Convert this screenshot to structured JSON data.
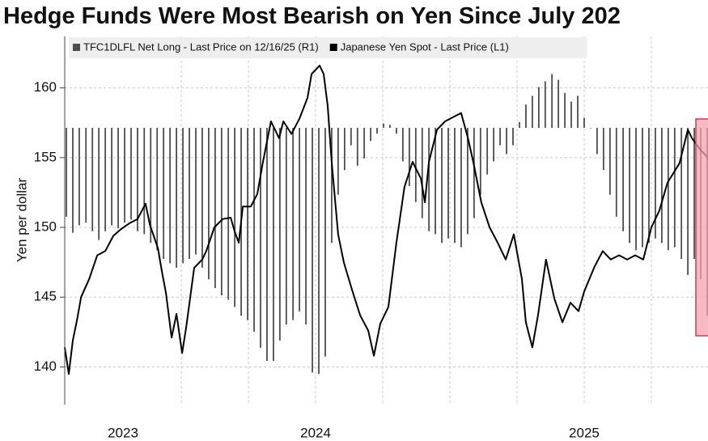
{
  "chart_data": {
    "type": "combo",
    "title": "Hedge Funds Were Most Bearish on Yen Since July 202",
    "y_label": "Yen per dollar",
    "xlim": [
      2023.066,
      2025.461
    ],
    "ylim": [
      137.3,
      163.4
    ],
    "y2lim": [
      -190000,
      60000
    ],
    "yticks": [
      140,
      145,
      150,
      155,
      160
    ],
    "xticks": [
      {
        "value": 2023,
        "label": "2023"
      },
      {
        "value": 2023.5,
        "label": null
      },
      {
        "value": 2023.75,
        "label": null
      },
      {
        "value": 2024,
        "label": "2024"
      },
      {
        "value": 2024.25,
        "label": null
      },
      {
        "value": 2024.5,
        "label": null
      },
      {
        "value": 2024.75,
        "label": null
      },
      {
        "value": 2025,
        "label": "2025"
      },
      {
        "value": 2025.25,
        "label": null
      }
    ],
    "grid": true,
    "legend": "top-left",
    "series": [
      {
        "name": "TFC1DLFL Net Long - Last Price on 12/16/25 (R1)",
        "type": "bar",
        "axis": "y2",
        "color": "#4d4d4d",
        "x": [
          2023.072,
          2023.096,
          2023.12,
          2023.145,
          2023.169,
          2023.193,
          2023.217,
          2023.241,
          2023.265,
          2023.289,
          2023.313,
          2023.337,
          2023.362,
          2023.386,
          2023.41,
          2023.434,
          2023.458,
          2023.482,
          2023.506,
          2023.53,
          2023.554,
          2023.578,
          2023.602,
          2023.626,
          2023.65,
          2023.675,
          2023.699,
          2023.723,
          2023.747,
          2023.771,
          2023.795,
          2023.819,
          2023.843,
          2023.867,
          2023.891,
          2023.916,
          2023.94,
          2023.964,
          2023.988,
          2024.012,
          2024.036,
          2024.06,
          2024.084,
          2024.108,
          2024.132,
          2024.156,
          2024.181,
          2024.205,
          2024.229,
          2024.253,
          2024.277,
          2024.301,
          2024.325,
          2024.349,
          2024.373,
          2024.397,
          2024.422,
          2024.446,
          2024.47,
          2024.494,
          2024.518,
          2024.542,
          2024.566,
          2024.59,
          2024.614,
          2024.639,
          2024.663,
          2024.687,
          2024.711,
          2024.735,
          2024.759,
          2024.783,
          2024.807,
          2024.831,
          2024.855,
          2024.88,
          2024.904,
          2024.928,
          2024.952,
          2024.976,
          2025.0,
          2025.024,
          2025.048,
          2025.072,
          2025.096,
          2025.12,
          2025.145,
          2025.169,
          2025.193,
          2025.217,
          2025.241,
          2025.265,
          2025.289,
          2025.313,
          2025.337,
          2025.362,
          2025.386,
          2025.41,
          2025.434,
          2025.458
        ],
        "values": [
          -61000,
          -72000,
          -67000,
          -65000,
          -71000,
          -77000,
          -71000,
          -67000,
          -69000,
          -65000,
          -63000,
          -71000,
          -73000,
          -79000,
          -84000,
          -90000,
          -93000,
          -96000,
          -93000,
          -90000,
          -87000,
          -96000,
          -104000,
          -110000,
          -115000,
          -118000,
          -123000,
          -129000,
          -132000,
          -140000,
          -151000,
          -160000,
          -160000,
          -146000,
          -135000,
          -132000,
          -126000,
          -135000,
          -168000,
          -169000,
          -157000,
          -79000,
          -46000,
          -29000,
          -12000,
          -26000,
          -21000,
          -9000,
          -4000,
          3000,
          2000,
          -4000,
          -23000,
          -40000,
          -51000,
          -62000,
          -71000,
          -73000,
          -79000,
          -76000,
          -79000,
          -82000,
          -73000,
          -62000,
          -46000,
          -32000,
          -23000,
          -12000,
          -18000,
          -12000,
          4000,
          16000,
          22000,
          28000,
          32000,
          37000,
          33000,
          24000,
          18000,
          22000,
          7000,
          0,
          -18000,
          -29000,
          -46000,
          -61000,
          -71000,
          -79000,
          -84000,
          -82000,
          -79000,
          -76000,
          -79000,
          -84000,
          -82000,
          -90000,
          -101000,
          -90000,
          -104000,
          -129000
        ]
      },
      {
        "name": "Japanese Yen Spot - Last Price (L1)",
        "type": "line",
        "color": "#000000",
        "x": [
          2023.066,
          2023.081,
          2023.096,
          2023.112,
          2023.127,
          2023.157,
          2023.187,
          2023.217,
          2023.247,
          2023.277,
          2023.307,
          2023.337,
          2023.367,
          2023.383,
          2023.413,
          2023.428,
          2023.443,
          2023.464,
          2023.482,
          2023.503,
          2023.518,
          2023.548,
          2023.578,
          2023.593,
          2023.623,
          2023.654,
          2023.684,
          2023.699,
          2023.714,
          2023.729,
          2023.759,
          2023.783,
          2023.804,
          2023.834,
          2023.864,
          2023.88,
          2023.91,
          2023.94,
          2023.97,
          2023.985,
          2024.015,
          2024.03,
          2024.045,
          2024.06,
          2024.084,
          2024.105,
          2024.136,
          2024.166,
          2024.196,
          2024.217,
          2024.241,
          2024.271,
          2024.301,
          2024.331,
          2024.361,
          2024.392,
          2024.407,
          2024.422,
          2024.452,
          2024.482,
          2024.512,
          2024.542,
          2024.566,
          2024.587,
          2024.617,
          2024.648,
          2024.678,
          2024.708,
          2024.738,
          2024.768,
          2024.783,
          2024.807,
          2024.828,
          2024.858,
          2024.889,
          2024.919,
          2024.949,
          2024.979,
          2025.0,
          2025.039,
          2025.069,
          2025.099,
          2025.13,
          2025.16,
          2025.19,
          2025.22,
          2025.25,
          2025.28,
          2025.31,
          2025.355,
          2025.386,
          2025.401,
          2025.431,
          2025.461
        ],
        "values": [
          141.4,
          139.5,
          141.9,
          143.4,
          145.0,
          146.3,
          148.0,
          148.3,
          149.4,
          149.9,
          150.3,
          150.6,
          151.7,
          150.2,
          148.5,
          146.8,
          145.3,
          142.1,
          143.8,
          141.0,
          142.8,
          147.1,
          147.7,
          148.3,
          150.0,
          150.6,
          150.7,
          149.7,
          148.9,
          151.5,
          151.5,
          152.4,
          154.7,
          157.6,
          156.4,
          157.6,
          156.7,
          157.8,
          159.3,
          161.0,
          161.6,
          161.0,
          158.7,
          154.7,
          149.5,
          147.5,
          145.5,
          143.7,
          142.6,
          140.8,
          143.1,
          144.3,
          148.9,
          152.9,
          154.7,
          153.5,
          151.8,
          154.7,
          157.0,
          157.6,
          157.9,
          158.2,
          156.5,
          154.7,
          151.8,
          150.0,
          148.9,
          147.7,
          149.5,
          146.3,
          143.2,
          141.4,
          143.7,
          147.7,
          144.9,
          143.2,
          144.6,
          144.0,
          145.4,
          147.2,
          148.3,
          147.7,
          148.0,
          147.7,
          148.0,
          147.7,
          150.0,
          151.2,
          153.2,
          154.6,
          157.0,
          156.4,
          155.6,
          155.0
        ]
      }
    ]
  }
}
